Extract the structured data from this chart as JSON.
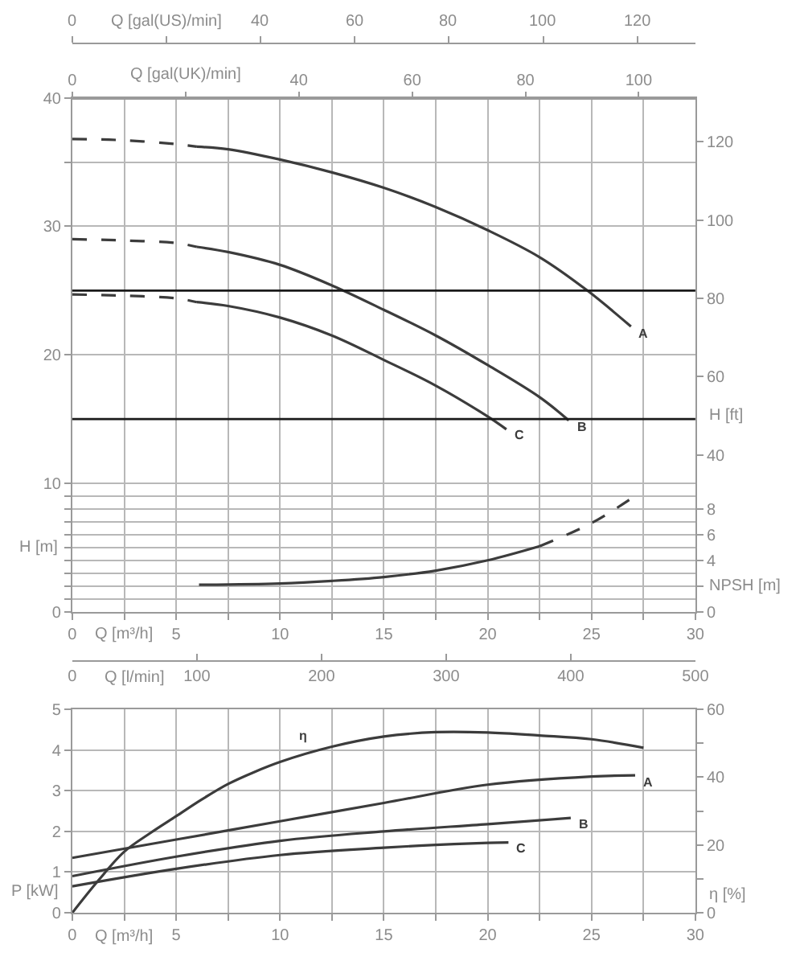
{
  "chart_data": [
    {
      "type": "other",
      "annotations": [
        "0",
        "Q [gal(US)/min]",
        "40",
        "60",
        "80",
        "100",
        "120"
      ]
    },
    {
      "type": "line",
      "xlabel": "Q [m³/h]",
      "ylabel": "H [m]",
      "y2label": "H [ft]",
      "y3label": "NPSH [m]",
      "x2label": "Q [gal(UK)/min]",
      "xlim": [
        0,
        30
      ],
      "xticks": [
        0,
        {
          "value": 2.5,
          "label": null
        },
        5,
        {
          "value": 7.5,
          "label": null
        },
        10,
        {
          "value": 12.5,
          "label": null
        },
        15,
        {
          "value": 17.5,
          "label": null
        },
        20,
        {
          "value": 22.5,
          "label": null
        },
        25,
        {
          "value": 27.5,
          "label": null
        },
        30
      ],
      "ylim": [
        0,
        40
      ],
      "yticks": [
        0,
        {
          "value": 1,
          "label": null
        },
        {
          "value": 2,
          "label": null
        },
        {
          "value": 3,
          "label": null
        },
        {
          "value": 4,
          "label": null
        },
        {
          "value": 5,
          "label": null
        },
        {
          "value": 6,
          "label": null
        },
        {
          "value": 7,
          "label": null
        },
        {
          "value": 8,
          "label": null
        },
        {
          "value": 9,
          "label": null
        },
        10,
        20,
        30,
        {
          "value": 35,
          "label": null
        },
        40
      ],
      "y2lim": [
        0,
        131.2
      ],
      "y2ticks": [
        40,
        60,
        80,
        100,
        120
      ],
      "y3lim": [
        0,
        40
      ],
      "y3ticks": [
        0,
        {
          "value": 2,
          "label": null
        },
        4,
        6,
        8
      ],
      "x2lim": [
        0,
        110
      ],
      "x2ticks": [
        0,
        {
          "value": 20,
          "label": null
        },
        40,
        60,
        80,
        100
      ],
      "grid": true,
      "ref_lines": [
        {
          "axis": "y",
          "value": 25,
          "color": "#1a1a1a"
        },
        {
          "axis": "y",
          "value": 15,
          "color": "#1a1a1a"
        }
      ],
      "series": [
        {
          "color": "#3c3c3c",
          "line_style": "dashed",
          "x": [
            0,
            2.5,
            5,
            6
          ],
          "values": [
            36.8,
            36.7,
            36.4,
            36.2
          ]
        },
        {
          "name": "A",
          "color": "#3c3c3c",
          "line_style": "solid",
          "x": [
            6,
            7.5,
            10,
            12.5,
            15,
            17.5,
            20,
            22.5,
            24.8,
            26.9
          ],
          "values": [
            36.2,
            36.0,
            35.2,
            34.2,
            33.0,
            31.5,
            29.7,
            27.6,
            25.0,
            22.2
          ]
        },
        {
          "color": "#3c3c3c",
          "line_style": "dashed",
          "x": [
            0,
            2.5,
            5,
            6
          ],
          "values": [
            29.0,
            28.9,
            28.7,
            28.4
          ]
        },
        {
          "name": "B",
          "color": "#3c3c3c",
          "line_style": "solid",
          "x": [
            6,
            7.5,
            10,
            12.5,
            15,
            17.5,
            20,
            22.5,
            23.9
          ],
          "values": [
            28.4,
            28.0,
            27.0,
            25.4,
            23.5,
            21.5,
            19.2,
            16.7,
            14.9
          ]
        },
        {
          "color": "#3c3c3c",
          "line_style": "dashed",
          "x": [
            0,
            2.5,
            5,
            6
          ],
          "values": [
            24.7,
            24.6,
            24.4,
            24.1
          ]
        },
        {
          "name": "C",
          "color": "#3c3c3c",
          "line_style": "solid",
          "x": [
            6,
            7.5,
            10,
            12.5,
            15,
            17.5,
            20,
            20.9
          ],
          "values": [
            24.1,
            23.8,
            22.9,
            21.5,
            19.6,
            17.6,
            15.2,
            14.2
          ]
        },
        {
          "color": "#3c3c3c",
          "line_style": "solid",
          "axis": "y3",
          "x": [
            6.1,
            10,
            12.5,
            15,
            17.5,
            20,
            22.5
          ],
          "values": [
            2.1,
            2.2,
            2.4,
            2.7,
            3.2,
            4.0,
            5.1
          ]
        },
        {
          "color": "#3c3c3c",
          "line_style": "dashed",
          "axis": "y3",
          "x": [
            22.5,
            25,
            27
          ],
          "values": [
            5.1,
            6.9,
            8.9
          ]
        }
      ]
    },
    {
      "type": "line",
      "xlabel": "Q [m³/h]",
      "ylabel": "P [kW]",
      "y2label": "η [%]",
      "x2label": "Q [l/min]",
      "xlim": [
        0,
        30
      ],
      "xticks": [
        0,
        {
          "value": 2.5,
          "label": null
        },
        5,
        {
          "value": 7.5,
          "label": null
        },
        10,
        {
          "value": 12.5,
          "label": null
        },
        15,
        {
          "value": 17.5,
          "label": null
        },
        20,
        {
          "value": 22.5,
          "label": null
        },
        25,
        {
          "value": 27.5,
          "label": null
        },
        30
      ],
      "ylim": [
        0,
        5
      ],
      "yticks": [
        0,
        1,
        2,
        3,
        4,
        5
      ],
      "y2lim": [
        0,
        60
      ],
      "y2ticks": [
        0,
        {
          "value": 10,
          "label": null
        },
        20,
        {
          "value": 30,
          "label": null
        },
        40,
        {
          "value": 50,
          "label": null
        },
        60
      ],
      "x2lim": [
        0,
        500
      ],
      "x2ticks": [
        0,
        100,
        200,
        300,
        400,
        500
      ],
      "grid": true,
      "series": [
        {
          "name": "η",
          "color": "#3c3c3c",
          "axis": "y2",
          "x": [
            0,
            1.25,
            2.5,
            3.75,
            5,
            6.25,
            7.5,
            8.75,
            10,
            12.5,
            15,
            17.5,
            20,
            22.5,
            25,
            27.5
          ],
          "values": [
            0,
            9.5,
            18,
            23.5,
            28.5,
            33.5,
            38,
            41.5,
            44.5,
            49,
            52,
            53.3,
            53.2,
            52.3,
            51.2,
            48.7
          ]
        },
        {
          "name": "A",
          "color": "#3c3c3c",
          "x": [
            0,
            5,
            10,
            15,
            20,
            25,
            27.1
          ],
          "values": [
            1.35,
            1.8,
            2.25,
            2.7,
            3.15,
            3.35,
            3.38
          ]
        },
        {
          "name": "B",
          "color": "#3c3c3c",
          "x": [
            0,
            5,
            10,
            15,
            20,
            24
          ],
          "values": [
            0.9,
            1.38,
            1.77,
            2.0,
            2.18,
            2.33
          ]
        },
        {
          "name": "C",
          "color": "#3c3c3c",
          "x": [
            0,
            5,
            10,
            15,
            17.5,
            20,
            21
          ],
          "values": [
            0.65,
            1.08,
            1.42,
            1.6,
            1.67,
            1.72,
            1.73
          ]
        }
      ]
    }
  ]
}
